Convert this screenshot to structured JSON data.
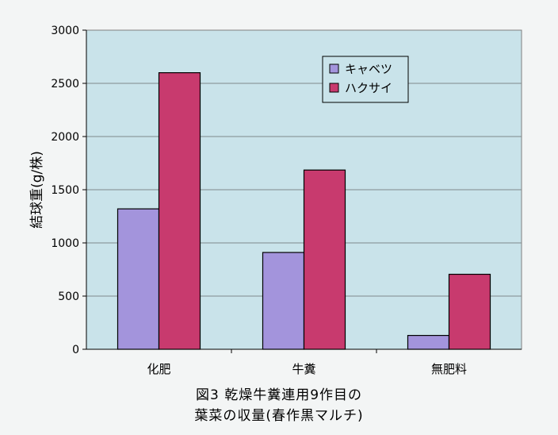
{
  "chart_data": {
    "type": "bar",
    "categories": [
      "化肥",
      "牛糞",
      "無肥料"
    ],
    "series": [
      {
        "name": "キャベツ",
        "values": [
          1320,
          910,
          130
        ],
        "color": "#a394dc"
      },
      {
        "name": "ハクサイ",
        "values": [
          2600,
          1685,
          705
        ],
        "color": "#c83a6e"
      }
    ],
    "ylabel": "結球重(g/株)",
    "xlabel": "",
    "ylim": [
      0,
      3000
    ],
    "yticks": [
      0,
      500,
      1000,
      1500,
      2000,
      2500,
      3000
    ],
    "grid": true,
    "legend_position": "top-right",
    "plot_background": "#c9e3ea"
  },
  "caption": {
    "line1": "図3 乾燥牛糞連用9作目の",
    "line2": "葉菜の収量(春作黒マルチ)"
  }
}
